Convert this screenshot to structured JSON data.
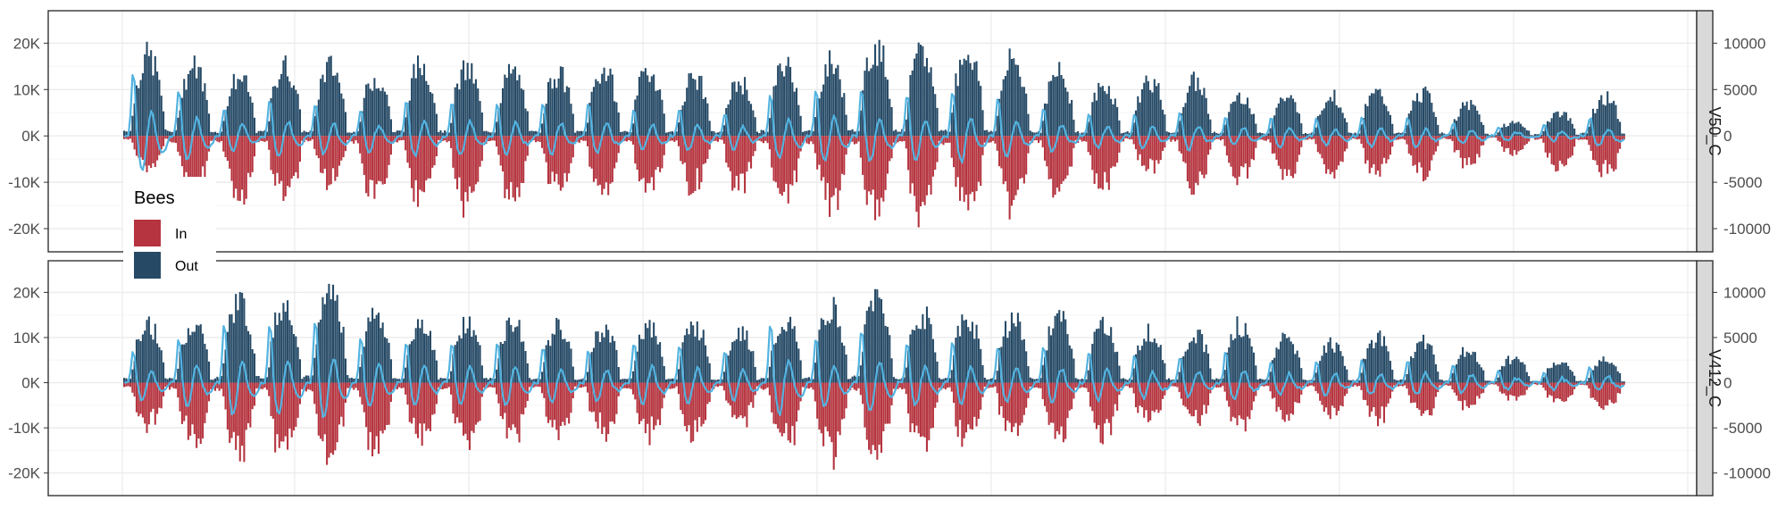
{
  "chart_data": {
    "type": "bar",
    "description_type": "faceted mirrored bar chart with secondary-axis line",
    "legend": {
      "title": "Bees",
      "placement": "left, overlapping panels",
      "entries": [
        {
          "label": "In",
          "color": "#b5343f"
        },
        {
          "label": "Out",
          "color": "#264a66"
        }
      ]
    },
    "colors": {
      "in": "#b5343f",
      "out": "#264a66",
      "line": "#52b3e0",
      "strip_bg": "#d9d9d9",
      "grid_major": "#ebebeb",
      "grid_minor": "#f5f5f5",
      "axis_text": "#4d4d4d"
    },
    "grid": true,
    "left_axis": {
      "ticks": [
        20000,
        10000,
        0,
        -10000,
        -20000
      ],
      "tick_labels": [
        "20K",
        "10K",
        "0K",
        "-10K",
        "-20K"
      ],
      "ylim": [
        -25000,
        27000
      ]
    },
    "right_axis": {
      "ticks": [
        10000,
        5000,
        0,
        -5000,
        -10000
      ],
      "tick_labels": [
        "10000",
        "5000",
        "0",
        "-5000",
        "-10000"
      ],
      "ylim": [
        -12500,
        13500
      ]
    },
    "panels": [
      {
        "strip": "V50_C",
        "day_peaks_out": [
          20500,
          18000,
          15000,
          18000,
          18000,
          15000,
          18500,
          17000,
          16500,
          16000,
          17000,
          17000,
          15000,
          14000,
          18500,
          19000,
          23000,
          21000,
          22000,
          19500,
          16000,
          13000,
          14500,
          14000,
          10500,
          10000,
          10500,
          11000,
          11000,
          8000,
          3500,
          6000,
          10000
        ],
        "day_peaks_in": [
          -9500,
          -17500,
          -17500,
          -18500,
          -13500,
          -19000,
          -18000,
          -19000,
          -17000,
          -16500,
          -17000,
          -15500,
          -15000,
          -14500,
          -18000,
          -20000,
          -22000,
          -21500,
          -22000,
          -19000,
          -17000,
          -15000,
          -10000,
          -15000,
          -13000,
          -12000,
          -12000,
          -10500,
          -10500,
          -8000,
          -5000,
          -10000,
          -11000
        ],
        "day_line_peaks": [
          7000,
          5000,
          3000,
          4000,
          3500,
          3000,
          4000,
          3800,
          3500,
          3500,
          3500,
          3000,
          3000,
          2500,
          4500,
          5000,
          5000,
          4500,
          5000,
          4000,
          3000,
          2500,
          2500,
          2500,
          2000,
          2000,
          1800,
          2000,
          2000,
          1500,
          800,
          1200,
          2000
        ]
      },
      {
        "strip": "V412_C",
        "day_peaks_out": [
          15500,
          15500,
          21500,
          21000,
          24500,
          18000,
          16000,
          16000,
          16000,
          14500,
          14000,
          15500,
          15000,
          14000,
          16000,
          19500,
          22500,
          18000,
          17000,
          16500,
          17000,
          15500,
          14000,
          13000,
          15500,
          12000,
          10500,
          12000,
          11000,
          9000,
          6500,
          5500,
          6500
        ],
        "day_peaks_in": [
          -12500,
          -18000,
          -21000,
          -21500,
          -22500,
          -19500,
          -16500,
          -18000,
          -15500,
          -15000,
          -14500,
          -16500,
          -16000,
          -12000,
          -18000,
          -20000,
          -21500,
          -19000,
          -17000,
          -15500,
          -16000,
          -15000,
          -13000,
          -12000,
          -13000,
          -10000,
          -10000,
          -10500,
          -10000,
          -8000,
          -5000,
          -6000,
          -8000
        ],
        "day_line_peaks": [
          3500,
          5000,
          6500,
          6500,
          7000,
          5000,
          4500,
          4500,
          4500,
          4000,
          3500,
          4500,
          4000,
          3500,
          6500,
          5000,
          6000,
          4500,
          4500,
          4000,
          4000,
          3500,
          3000,
          3000,
          3500,
          2500,
          2500,
          2500,
          2500,
          2000,
          1200,
          1200,
          1800
        ]
      }
    ]
  }
}
